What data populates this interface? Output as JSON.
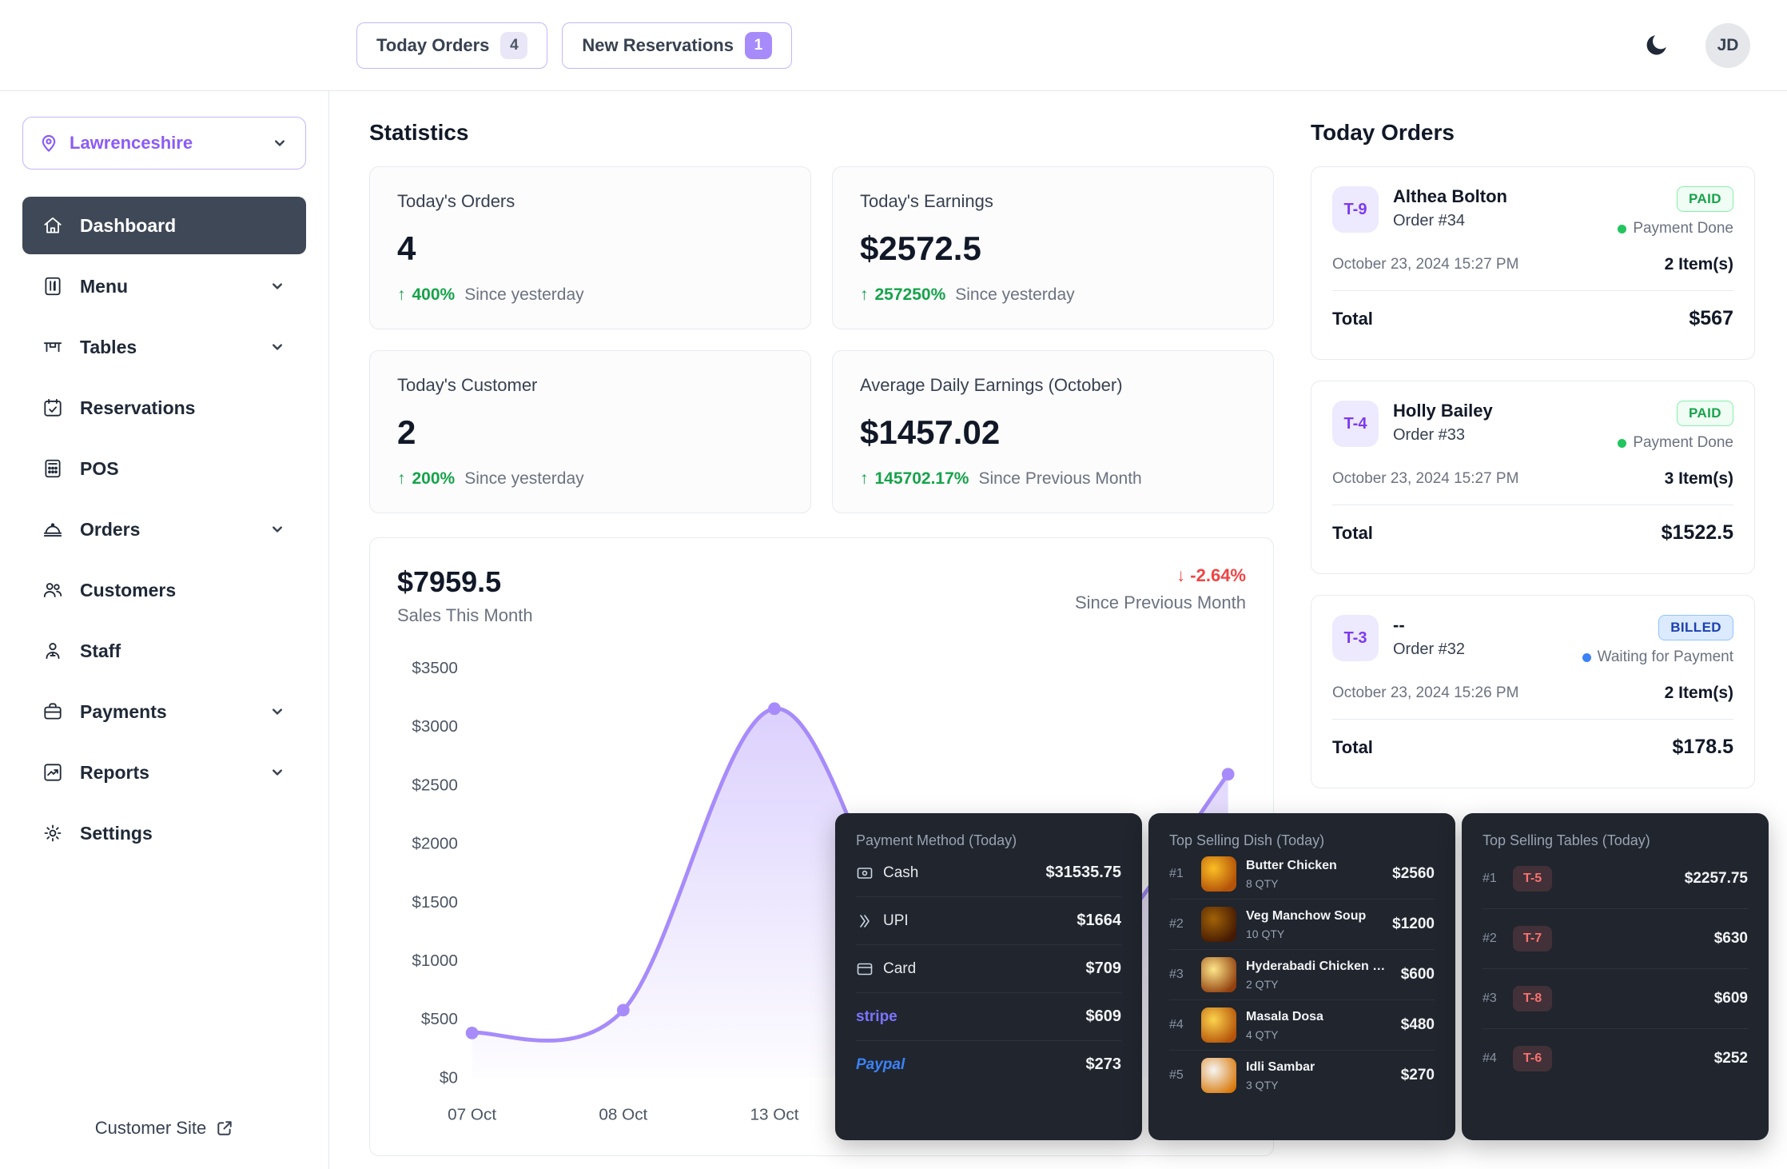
{
  "theme": {
    "accent_purple": "#8b5cf6",
    "positive_green": "#16a34a",
    "negative_red": "#ef4444",
    "billed_blue": "#2563eb",
    "chart_line": "#a78bfa",
    "active_nav_bg": "#3e4856",
    "dark_panel_bg": "#20252e"
  },
  "topbar": {
    "today_orders_label": "Today Orders",
    "today_orders_badge": "4",
    "new_reservations_label": "New Reservations",
    "new_reservations_badge": "1",
    "avatar_initials": "JD"
  },
  "sidebar": {
    "location": "Lawrenceshire",
    "items": [
      {
        "label": "Dashboard"
      },
      {
        "label": "Menu"
      },
      {
        "label": "Tables"
      },
      {
        "label": "Reservations"
      },
      {
        "label": "POS"
      },
      {
        "label": "Orders"
      },
      {
        "label": "Customers"
      },
      {
        "label": "Staff"
      },
      {
        "label": "Payments"
      },
      {
        "label": "Reports"
      },
      {
        "label": "Settings"
      }
    ],
    "customer_site_label": "Customer Site"
  },
  "statistics": {
    "title": "Statistics",
    "cards": [
      {
        "title": "Today's Orders",
        "value": "4",
        "delta": "400%",
        "note": "Since yesterday"
      },
      {
        "title": "Today's Earnings",
        "value": "$2572.5",
        "delta": "257250%",
        "note": "Since yesterday"
      },
      {
        "title": "Today's Customer",
        "value": "2",
        "delta": "200%",
        "note": "Since yesterday"
      },
      {
        "title": "Average Daily Earnings (October)",
        "value": "$1457.02",
        "delta": "145702.17%",
        "note": "Since Previous Month"
      }
    ]
  },
  "sales": {
    "amount": "$7959.5",
    "subtitle": "Sales This Month",
    "delta": "-2.64%",
    "delta_note": "Since Previous Month"
  },
  "chart_data": {
    "type": "area",
    "title": "Sales This Month",
    "x": [
      "07 Oct",
      "08 Oct",
      "13 Oct",
      "",
      "",
      ""
    ],
    "values": [
      380,
      575,
      3150,
      900,
      950,
      2590
    ],
    "y_ticks": [
      "$0",
      "$500",
      "$1000",
      "$1500",
      "$2000",
      "$2500",
      "$3000",
      "$3500"
    ],
    "ylim": [
      0,
      3500
    ],
    "line_color": "#a78bfa",
    "grid": false,
    "legend": false,
    "note": "points between 13 Oct and the last visible point are obscured by overlay panels; values estimated"
  },
  "today_orders": {
    "title": "Today Orders",
    "orders": [
      {
        "table": "T-9",
        "customer": "Althea Bolton",
        "order_no": "Order #34",
        "status": "PAID",
        "status_note": "Payment Done",
        "datetime": "October 23, 2024 15:27 PM",
        "items": "2 Item(s)",
        "total_label": "Total",
        "total": "$567"
      },
      {
        "table": "T-4",
        "customer": "Holly Bailey",
        "order_no": "Order #33",
        "status": "PAID",
        "status_note": "Payment Done",
        "datetime": "October 23, 2024 15:27 PM",
        "items": "3 Item(s)",
        "total_label": "Total",
        "total": "$1522.5"
      },
      {
        "table": "T-3",
        "customer": "--",
        "order_no": "Order #32",
        "status": "BILLED",
        "status_note": "Waiting for Payment",
        "datetime": "October 23, 2024 15:26 PM",
        "items": "2 Item(s)",
        "total_label": "Total",
        "total": "$178.5"
      }
    ]
  },
  "payment_methods": {
    "title": "Payment Method (Today)",
    "rows": [
      {
        "label": "Cash",
        "amount": "$31535.75"
      },
      {
        "label": "UPI",
        "amount": "$1664"
      },
      {
        "label": "Card",
        "amount": "$709"
      },
      {
        "label": "stripe",
        "amount": "$609"
      },
      {
        "label": "Paypal",
        "amount": "$273"
      }
    ]
  },
  "top_dishes": {
    "title": "Top Selling Dish (Today)",
    "rows": [
      {
        "rank": "#1",
        "name": "Butter Chicken",
        "qty": "8 QTY",
        "amount": "$2560"
      },
      {
        "rank": "#2",
        "name": "Veg Manchow Soup",
        "qty": "10 QTY",
        "amount": "$1200"
      },
      {
        "rank": "#3",
        "name": "Hyderabadi Chicken Biryani",
        "qty": "2 QTY",
        "amount": "$600"
      },
      {
        "rank": "#4",
        "name": "Masala Dosa",
        "qty": "4 QTY",
        "amount": "$480"
      },
      {
        "rank": "#5",
        "name": "Idli Sambar",
        "qty": "3 QTY",
        "amount": "$270"
      }
    ]
  },
  "top_tables": {
    "title": "Top Selling Tables (Today)",
    "rows": [
      {
        "rank": "#1",
        "table": "T-5",
        "amount": "$2257.75"
      },
      {
        "rank": "#2",
        "table": "T-7",
        "amount": "$630"
      },
      {
        "rank": "#3",
        "table": "T-8",
        "amount": "$609"
      },
      {
        "rank": "#4",
        "table": "T-6",
        "amount": "$252"
      }
    ]
  }
}
